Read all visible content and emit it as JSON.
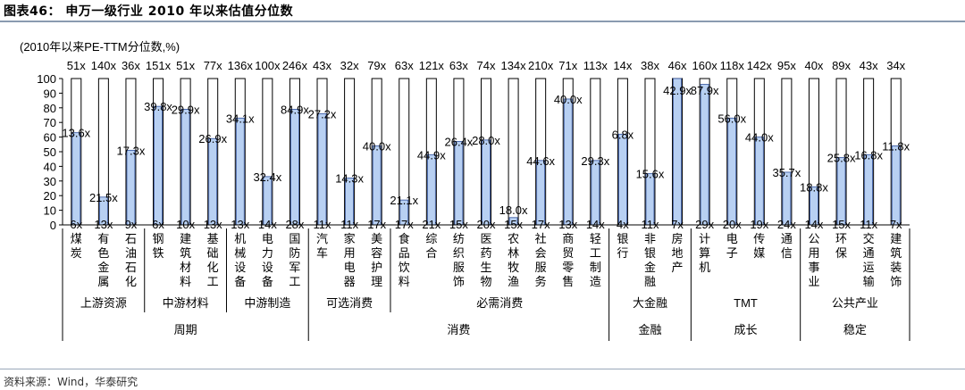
{
  "header": {
    "title": "图表46：  申万一级行业 2010 年以来估值分位数",
    "unit_label": "(2010年以来PE-TTM分位数,%)",
    "source": "资料来源：Wind，华泰研究"
  },
  "colors": {
    "bar_fill": "#b8d0f2",
    "bar_stroke": "#2e4f9b",
    "outline": "#000000"
  },
  "chart_data": {
    "type": "bar",
    "ylim": [
      0,
      100
    ],
    "yticks": [
      0,
      10,
      20,
      30,
      40,
      50,
      60,
      70,
      80,
      90,
      100
    ],
    "grid": false,
    "categories": [
      "煤炭",
      "有色金属",
      "石油石化",
      "钢铁",
      "建筑材料",
      "基础化工",
      "机械设备",
      "电力设备",
      "国防军工",
      "汽车",
      "家用电器",
      "美容护理",
      "食品饮料",
      "综合",
      "纺织服饰",
      "医药生物",
      "农林牧渔",
      "社会服务",
      "商贸零售",
      "轻工制造",
      "银行",
      "非银金融",
      "房地产",
      "计算机",
      "电子",
      "传媒",
      "通信",
      "公用事业",
      "环保",
      "交通运输",
      "建筑装饰"
    ],
    "values": [
      63,
      19,
      51,
      81,
      79,
      59,
      73,
      33,
      79,
      76,
      32,
      54,
      17,
      48,
      57,
      58,
      5,
      44,
      86,
      44,
      62,
      35,
      100,
      96,
      73,
      60,
      36,
      26,
      46,
      48,
      54
    ],
    "current_pe": [
      "13.6x",
      "21.5x",
      "17.3x",
      "39.8x",
      "29.9x",
      "26.9x",
      "34.1x",
      "32.4x",
      "84.9x",
      "27.2x",
      "14.3x",
      "40.0x",
      "21.1x",
      "44.9x",
      "26.4x",
      "28.0x",
      "18.0x",
      "44.6x",
      "40.0x",
      "29.3x",
      "6.8x",
      "15.6x",
      "42.9x",
      "87.9x",
      "56.0x",
      "44.0x",
      "35.7x",
      "18.8x",
      "25.8x",
      "16.8x",
      "11.8x"
    ],
    "max_pe": [
      "51x",
      "140x",
      "36x",
      "151x",
      "51x",
      "77x",
      "136x",
      "100x",
      "246x",
      "43x",
      "32x",
      "79x",
      "63x",
      "121x",
      "63x",
      "74x",
      "134x",
      "210x",
      "71x",
      "113x",
      "14x",
      "38x",
      "46x",
      "160x",
      "118x",
      "142x",
      "95x",
      "40x",
      "89x",
      "43x",
      "34x"
    ],
    "min_pe": [
      "6x",
      "13x",
      "9x",
      "6x",
      "10x",
      "13x",
      "13x",
      "14x",
      "28x",
      "11x",
      "11x",
      "17x",
      "17x",
      "21x",
      "15x",
      "20x",
      "15x",
      "17x",
      "13x",
      "14x",
      "4x",
      "11x",
      "7x",
      "29x",
      "20x",
      "19x",
      "24x",
      "14x",
      "15x",
      "11x",
      "7x"
    ],
    "subgroups": [
      {
        "label": "上游资源",
        "start": 0,
        "end": 2
      },
      {
        "label": "中游材料",
        "start": 3,
        "end": 5
      },
      {
        "label": "中游制造",
        "start": 6,
        "end": 8
      },
      {
        "label": "可选消费",
        "start": 9,
        "end": 11
      },
      {
        "label": "必需消费",
        "start": 12,
        "end": 19
      },
      {
        "label": "大金融",
        "start": 20,
        "end": 22
      },
      {
        "label": "TMT",
        "start": 23,
        "end": 26
      },
      {
        "label": "公共产业",
        "start": 27,
        "end": 30
      }
    ],
    "groups": [
      {
        "label": "周期",
        "start": 0,
        "end": 8
      },
      {
        "label": "消费",
        "start": 9,
        "end": 19
      },
      {
        "label": "金融",
        "start": 20,
        "end": 22
      },
      {
        "label": "成长",
        "start": 23,
        "end": 26
      },
      {
        "label": "稳定",
        "start": 27,
        "end": 30
      }
    ]
  }
}
